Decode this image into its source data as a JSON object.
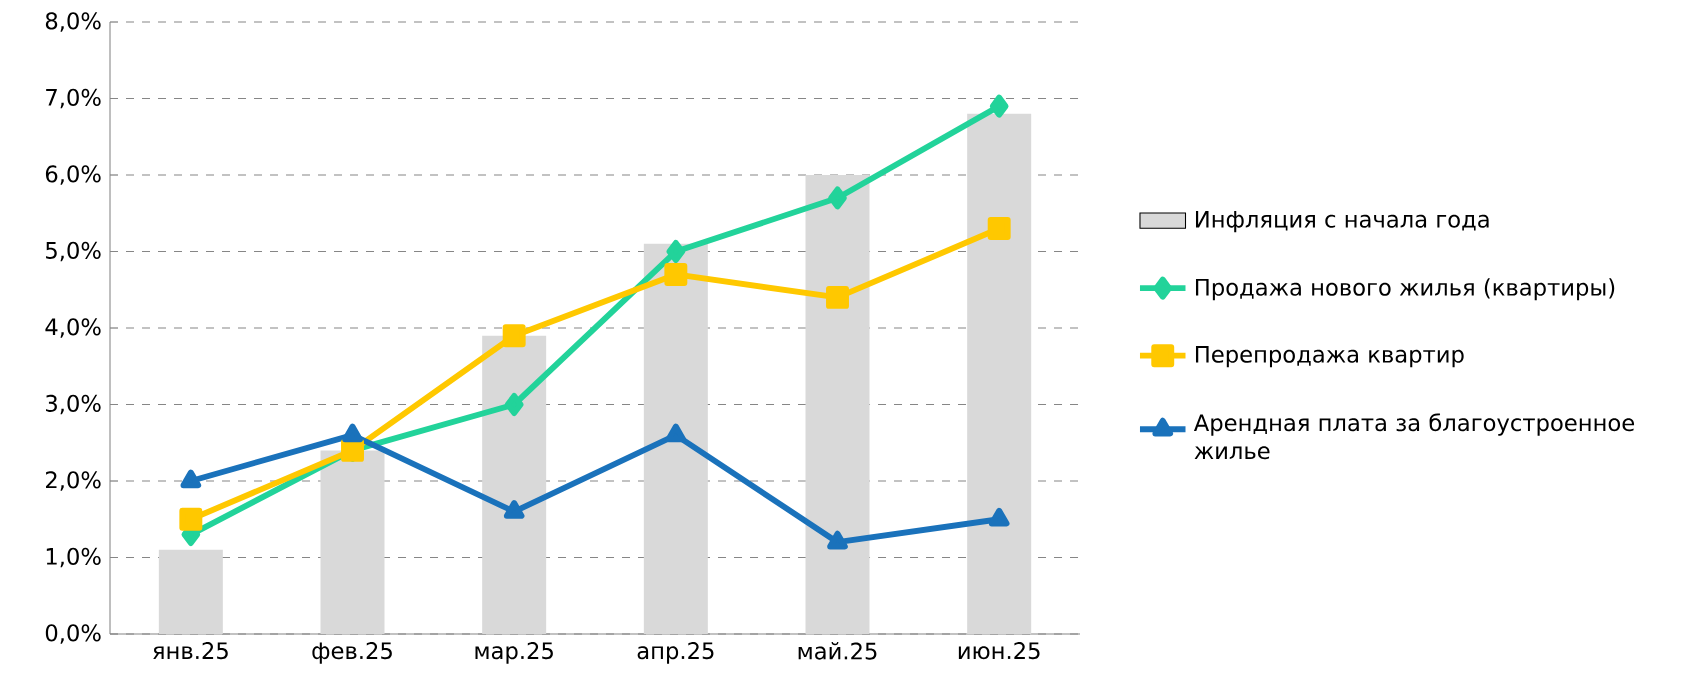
{
  "chart_data": {
    "type": "line",
    "categories": [
      "янв.25",
      "фев.25",
      "мар.25",
      "апр.25",
      "май.25",
      "июн.25"
    ],
    "series": [
      {
        "name": "Инфляция с начала года",
        "type": "bar",
        "color": "#d9d9d9",
        "values": [
          1.1,
          2.4,
          3.9,
          5.1,
          6.0,
          6.8
        ]
      },
      {
        "name": "Продажа нового жилья (квартиры)",
        "color": "#22d39a",
        "marker": "diamond",
        "values": [
          1.3,
          2.4,
          3.0,
          5.0,
          5.7,
          6.9
        ]
      },
      {
        "name": "Перепродажа квартир",
        "color": "#ffc800",
        "marker": "square",
        "values": [
          1.5,
          2.4,
          3.9,
          4.7,
          4.4,
          5.3
        ]
      },
      {
        "name": "Арендная плата за благоустроенное жилье",
        "color": "#1a72bb",
        "marker": "triangle",
        "values": [
          2.0,
          2.6,
          1.6,
          2.6,
          1.2,
          1.5
        ]
      }
    ],
    "ylim": [
      0,
      8
    ],
    "yticks": [
      {
        "value": 0,
        "label": "0,0%"
      },
      {
        "value": 1,
        "label": "1,0%"
      },
      {
        "value": 2,
        "label": "2,0%"
      },
      {
        "value": 3,
        "label": "3,0%"
      },
      {
        "value": 4,
        "label": "4,0%"
      },
      {
        "value": 5,
        "label": "5,0%"
      },
      {
        "value": 6,
        "label": "6,0%"
      },
      {
        "value": 7,
        "label": "7,0%"
      },
      {
        "value": 8,
        "label": "8,0%"
      }
    ],
    "grid": "y",
    "legend": "right",
    "line_style": "solid"
  }
}
